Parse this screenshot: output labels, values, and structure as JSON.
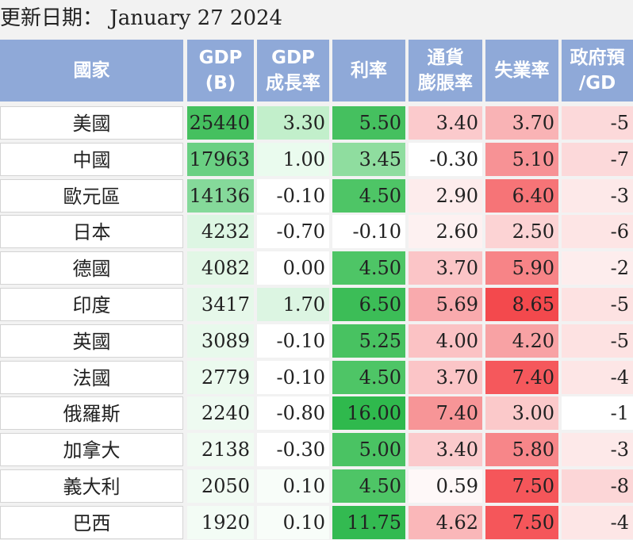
{
  "header": {
    "label": "更新日期：",
    "date": "January 27 2024"
  },
  "columns": [
    {
      "key": "country",
      "lines": [
        "國家"
      ]
    },
    {
      "key": "gdp",
      "lines": [
        "GDP",
        "(B)"
      ]
    },
    {
      "key": "growth",
      "lines": [
        "GDP",
        "成長率"
      ]
    },
    {
      "key": "rate",
      "lines": [
        "利率"
      ]
    },
    {
      "key": "inflation",
      "lines": [
        "通貨",
        "膨脹率"
      ]
    },
    {
      "key": "unemployment",
      "lines": [
        "失業率"
      ]
    },
    {
      "key": "budget",
      "lines": [
        "政府預",
        "/GD"
      ]
    }
  ],
  "rows": [
    {
      "country": "美國",
      "gdp": "25440",
      "growth": "3.30",
      "rate": "5.50",
      "inflation": "3.40",
      "unemployment": "3.70",
      "budget": "-5",
      "colors": [
        "#45c05f",
        "#c2efcb",
        "#45c05f",
        "#fbcacc",
        "#f9b3b5",
        "#fcd9da"
      ]
    },
    {
      "country": "中國",
      "gdp": "17963",
      "growth": "1.00",
      "rate": "3.45",
      "inflation": "-0.30",
      "unemployment": "5.10",
      "budget": "-7",
      "colors": [
        "#6ad083",
        "#eafbee",
        "#8fdd9f",
        "#ffffff",
        "#f79295",
        "#fcd9da"
      ]
    },
    {
      "country": "歐元區",
      "gdp": "14136",
      "growth": "-0.10",
      "rate": "4.50",
      "inflation": "2.90",
      "unemployment": "6.40",
      "budget": "-3",
      "colors": [
        "#85d99a",
        "#ffffff",
        "#4ec566",
        "#fdecec",
        "#f67477",
        "#fde9e9"
      ]
    },
    {
      "country": "日本",
      "gdp": "4232",
      "growth": "-0.70",
      "rate": "-0.10",
      "inflation": "2.60",
      "unemployment": "2.50",
      "budget": "-6",
      "colors": [
        "#ddf6e3",
        "#ffffff",
        "#ffffff",
        "#fdf1f1",
        "#fcd3d4",
        "#fde5e5"
      ]
    },
    {
      "country": "德國",
      "gdp": "4082",
      "growth": "0.00",
      "rate": "4.50",
      "inflation": "3.70",
      "unemployment": "5.90",
      "budget": "-2",
      "colors": [
        "#e2f7e6",
        "#ffffff",
        "#4ec566",
        "#fbc5c7",
        "#f78487",
        "#fdeded"
      ]
    },
    {
      "country": "印度",
      "gdp": "3417",
      "growth": "1.70",
      "rate": "6.50",
      "inflation": "5.69",
      "unemployment": "8.65",
      "budget": "-5",
      "colors": [
        "#e6f8ea",
        "#dcf5e2",
        "#3cbd57",
        "#f9aaad",
        "#f3494d",
        "#fde2e2"
      ]
    },
    {
      "country": "英國",
      "gdp": "3089",
      "growth": "-0.10",
      "rate": "5.25",
      "inflation": "4.00",
      "unemployment": "4.20",
      "budget": "-5",
      "colors": [
        "#e8f9ec",
        "#ffffff",
        "#48c261",
        "#fbc2c4",
        "#f8a2a4",
        "#fde2e2"
      ]
    },
    {
      "country": "法國",
      "gdp": "2779",
      "growth": "-0.10",
      "rate": "4.50",
      "inflation": "3.70",
      "unemployment": "7.40",
      "budget": "-4",
      "colors": [
        "#ebfaee",
        "#ffffff",
        "#4ec566",
        "#fbc5c7",
        "#f5585c",
        "#fde6e6"
      ]
    },
    {
      "country": "俄羅斯",
      "gdp": "2240",
      "growth": "-0.80",
      "rate": "16.00",
      "inflation": "7.40",
      "unemployment": "3.00",
      "budget": "-1",
      "colors": [
        "#eefaf1",
        "#ffffff",
        "#2fb94d",
        "#f79597",
        "#fbc9ca",
        "#ffffff"
      ]
    },
    {
      "country": "加拿大",
      "gdp": "2138",
      "growth": "-0.30",
      "rate": "5.00",
      "inflation": "3.40",
      "unemployment": "5.80",
      "budget": "-3",
      "colors": [
        "#f0fbf2",
        "#ffffff",
        "#4ac363",
        "#fbcacc",
        "#f78689",
        "#fde9e9"
      ]
    },
    {
      "country": "義大利",
      "gdp": "2050",
      "growth": "0.10",
      "rate": "4.50",
      "inflation": "0.59",
      "unemployment": "7.50",
      "budget": "-8",
      "colors": [
        "#f1fbf3",
        "#f8fdf9",
        "#4ec566",
        "#fef8f8",
        "#f5565a",
        "#fcd6d7"
      ]
    },
    {
      "country": "巴西",
      "gdp": "1920",
      "growth": "0.10",
      "rate": "11.75",
      "inflation": "4.62",
      "unemployment": "7.50",
      "budget": "-4",
      "colors": [
        "#f3fcf5",
        "#f8fdf9",
        "#33ba51",
        "#fab7b9",
        "#f5565a",
        "#fde6e6"
      ]
    }
  ]
}
